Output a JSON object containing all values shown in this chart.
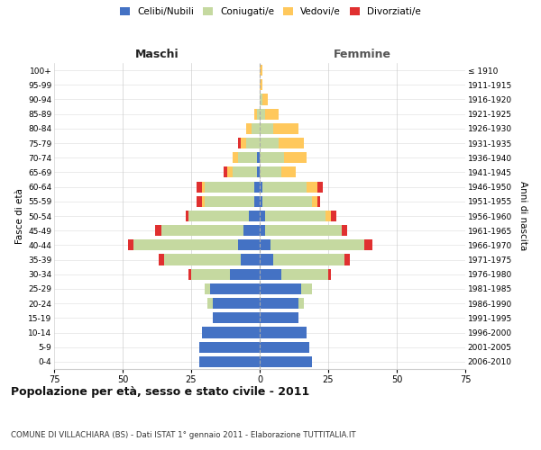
{
  "age_groups": [
    "0-4",
    "5-9",
    "10-14",
    "15-19",
    "20-24",
    "25-29",
    "30-34",
    "35-39",
    "40-44",
    "45-49",
    "50-54",
    "55-59",
    "60-64",
    "65-69",
    "70-74",
    "75-79",
    "80-84",
    "85-89",
    "90-94",
    "95-99",
    "100+"
  ],
  "birth_years": [
    "2006-2010",
    "2001-2005",
    "1996-2000",
    "1991-1995",
    "1986-1990",
    "1981-1985",
    "1976-1980",
    "1971-1975",
    "1966-1970",
    "1961-1965",
    "1956-1960",
    "1951-1955",
    "1946-1950",
    "1941-1945",
    "1936-1940",
    "1931-1935",
    "1926-1930",
    "1921-1925",
    "1916-1920",
    "1911-1915",
    "≤ 1910"
  ],
  "colors": {
    "celibi": "#4472C4",
    "coniugati": "#c5d9a0",
    "vedovi": "#ffc85c",
    "divorziati": "#e03030"
  },
  "males": {
    "celibi": [
      22,
      22,
      21,
      17,
      17,
      18,
      11,
      7,
      8,
      6,
      4,
      2,
      2,
      1,
      1,
      0,
      0,
      0,
      0,
      0,
      0
    ],
    "coniugati": [
      0,
      0,
      0,
      0,
      2,
      2,
      14,
      28,
      38,
      30,
      22,
      18,
      18,
      9,
      7,
      5,
      3,
      1,
      0,
      0,
      0
    ],
    "vedovi": [
      0,
      0,
      0,
      0,
      0,
      0,
      0,
      0,
      0,
      0,
      0,
      1,
      1,
      2,
      2,
      2,
      2,
      1,
      0,
      0,
      0
    ],
    "divorziati": [
      0,
      0,
      0,
      0,
      0,
      0,
      1,
      2,
      2,
      2,
      1,
      2,
      2,
      1,
      0,
      1,
      0,
      0,
      0,
      0,
      0
    ]
  },
  "females": {
    "nubili": [
      19,
      18,
      17,
      14,
      14,
      15,
      8,
      5,
      4,
      2,
      2,
      1,
      1,
      0,
      0,
      0,
      0,
      0,
      0,
      0,
      0
    ],
    "coniugate": [
      0,
      0,
      0,
      0,
      2,
      4,
      17,
      26,
      34,
      28,
      22,
      18,
      16,
      8,
      9,
      7,
      5,
      2,
      1,
      0,
      0
    ],
    "vedove": [
      0,
      0,
      0,
      0,
      0,
      0,
      0,
      0,
      0,
      0,
      2,
      2,
      4,
      5,
      8,
      9,
      9,
      5,
      2,
      1,
      1
    ],
    "divorziate": [
      0,
      0,
      0,
      0,
      0,
      0,
      1,
      2,
      3,
      2,
      2,
      1,
      2,
      0,
      0,
      0,
      0,
      0,
      0,
      0,
      0
    ]
  },
  "title": "Popolazione per età, sesso e stato civile - 2011",
  "subtitle": "COMUNE DI VILLACHIARA (BS) - Dati ISTAT 1° gennaio 2011 - Elaborazione TUTTITALIA.IT",
  "maschi_label": "Maschi",
  "femmine_label": "Femmine",
  "ylabel_left": "Fasce di età",
  "ylabel_right": "Anni di nascita",
  "xlim": 75,
  "legend_labels": [
    "Celibi/Nubili",
    "Coniugati/e",
    "Vedovi/e",
    "Divorziati/e"
  ],
  "background_color": "#ffffff",
  "grid_color": "#cccccc"
}
